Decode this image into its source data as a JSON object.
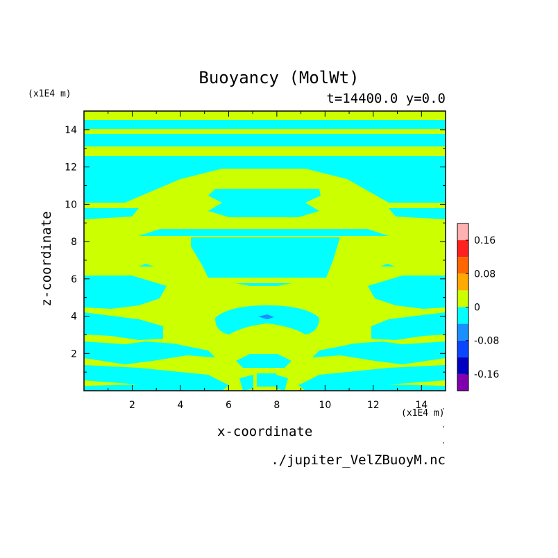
{
  "chart_data": {
    "type": "heatmap",
    "title": "Buoyancy (MolWt)",
    "subtitle": "t=14400.0 y=0.0",
    "xlabel": "x-coordinate",
    "ylabel": "z-coordinate",
    "x_unit": "(x1E4 m)",
    "y_unit": "(x1E4 m)",
    "xlim": [
      0,
      15
    ],
    "ylim": [
      0,
      15
    ],
    "x_ticks": [
      "2",
      "4",
      "6",
      "8",
      "10",
      "12",
      "14"
    ],
    "y_ticks": [
      "2",
      "4",
      "6",
      "8",
      "10",
      "12",
      "14"
    ],
    "colorbar": {
      "labels": [
        "0.16",
        "0.08",
        "0",
        "-0.08",
        "-0.16"
      ],
      "colors": [
        "#ffb0b0",
        "#ff2020",
        "#ff6600",
        "#ffaa00",
        "#ccff00",
        "#00ffff",
        "#1a90ff",
        "#0a45ff",
        "#0000c0",
        "#8000b0"
      ]
    },
    "field_colors": {
      "positive": "#ccff00",
      "negative": "#00ffff",
      "strong_negative": "#1a90ff"
    }
  },
  "footer": {
    "source": "./jupiter_VelZBuoyM.nc"
  }
}
